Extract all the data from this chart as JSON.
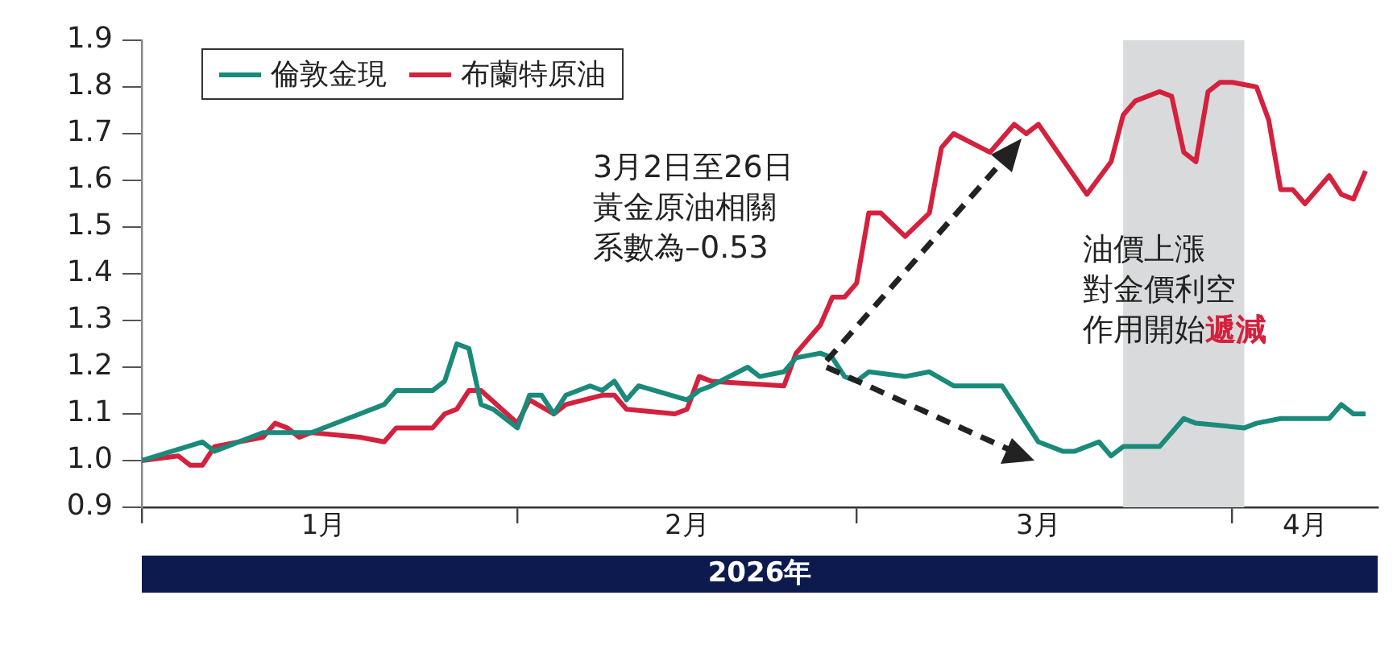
{
  "chart_data": {
    "type": "line",
    "xlabel": "2026年",
    "xlim": [
      "2026-01-01",
      "2026-04-13"
    ],
    "xticks": [
      {
        "value": "2026-01-01",
        "label": null
      },
      {
        "value": "2026-01-16",
        "label": "1月"
      },
      {
        "value": "2026-02-01",
        "label": null
      },
      {
        "value": "2026-02-15",
        "label": "2月"
      },
      {
        "value": "2026-03-01",
        "label": null
      },
      {
        "value": "2026-03-16",
        "label": "3月"
      },
      {
        "value": "2026-04-01",
        "label": null
      },
      {
        "value": "2026-04-07",
        "label": "4月"
      }
    ],
    "ylim": [
      0.9,
      1.9
    ],
    "yticks": [
      0.9,
      {
        "value": 1.0,
        "label": "1.0"
      },
      1.1,
      1.2,
      1.3,
      1.4,
      1.5,
      1.6,
      1.7,
      1.8,
      1.9
    ],
    "grid": false,
    "legend": "top left",
    "marker": "none",
    "line_style": "solid",
    "series": [
      {
        "name": "倫敦金現",
        "color": "#1a8a7a",
        "x": [
          "2026-01-01",
          "2026-01-06",
          "2026-01-07",
          "2026-01-11",
          "2026-01-15",
          "2026-01-19",
          "2026-01-21",
          "2026-01-22",
          "2026-01-25",
          "2026-01-26",
          "2026-01-27",
          "2026-01-28",
          "2026-01-29",
          "2026-01-30",
          "2026-02-01",
          "2026-02-02",
          "2026-02-03",
          "2026-02-04",
          "2026-02-05",
          "2026-02-07",
          "2026-02-08",
          "2026-02-09",
          "2026-02-10",
          "2026-02-11",
          "2026-02-15",
          "2026-02-16",
          "2026-02-17",
          "2026-02-20",
          "2026-02-21",
          "2026-02-23",
          "2026-02-24",
          "2026-02-26",
          "2026-02-27",
          "2026-02-28",
          "2026-03-01",
          "2026-03-02",
          "2026-03-05",
          "2026-03-07",
          "2026-03-09",
          "2026-03-13",
          "2026-03-16",
          "2026-03-18",
          "2026-03-19",
          "2026-03-21",
          "2026-03-22",
          "2026-03-23",
          "2026-03-26",
          "2026-03-27",
          "2026-03-28",
          "2026-03-29",
          "2026-04-02",
          "2026-04-03",
          "2026-04-05",
          "2026-04-09",
          "2026-04-10",
          "2026-04-11",
          "2026-04-12"
        ],
        "values": [
          1.0,
          1.04,
          1.02,
          1.06,
          1.06,
          1.1,
          1.12,
          1.15,
          1.15,
          1.17,
          1.25,
          1.24,
          1.12,
          1.11,
          1.07,
          1.14,
          1.14,
          1.1,
          1.14,
          1.16,
          1.15,
          1.17,
          1.13,
          1.16,
          1.13,
          1.15,
          1.16,
          1.2,
          1.18,
          1.19,
          1.22,
          1.23,
          1.22,
          1.18,
          1.17,
          1.19,
          1.18,
          1.19,
          1.16,
          1.16,
          1.04,
          1.02,
          1.02,
          1.04,
          1.01,
          1.03,
          1.03,
          1.06,
          1.09,
          1.08,
          1.07,
          1.08,
          1.09,
          1.09,
          1.12,
          1.1,
          1.1
        ]
      },
      {
        "name": "布蘭特原油",
        "color": "#d4213d",
        "x": [
          "2026-01-01",
          "2026-01-04",
          "2026-01-05",
          "2026-01-06",
          "2026-01-07",
          "2026-01-11",
          "2026-01-12",
          "2026-01-13",
          "2026-01-14",
          "2026-01-15",
          "2026-01-19",
          "2026-01-21",
          "2026-01-22",
          "2026-01-25",
          "2026-01-26",
          "2026-01-27",
          "2026-01-28",
          "2026-01-29",
          "2026-02-01",
          "2026-02-02",
          "2026-02-04",
          "2026-02-05",
          "2026-02-08",
          "2026-02-09",
          "2026-02-10",
          "2026-02-14",
          "2026-02-15",
          "2026-02-16",
          "2026-02-17",
          "2026-02-23",
          "2026-02-24",
          "2026-02-26",
          "2026-02-27",
          "2026-02-28",
          "2026-03-01",
          "2026-03-02",
          "2026-03-03",
          "2026-03-05",
          "2026-03-07",
          "2026-03-08",
          "2026-03-09",
          "2026-03-12",
          "2026-03-14",
          "2026-03-15",
          "2026-03-16",
          "2026-03-20",
          "2026-03-22",
          "2026-03-23",
          "2026-03-24",
          "2026-03-26",
          "2026-03-27",
          "2026-03-28",
          "2026-03-29",
          "2026-03-30",
          "2026-03-31",
          "2026-04-01",
          "2026-04-03",
          "2026-04-04",
          "2026-04-05",
          "2026-04-06",
          "2026-04-07",
          "2026-04-09",
          "2026-04-10",
          "2026-04-11",
          "2026-04-12"
        ],
        "values": [
          1.0,
          1.01,
          0.99,
          0.99,
          1.03,
          1.05,
          1.08,
          1.07,
          1.05,
          1.06,
          1.05,
          1.04,
          1.07,
          1.07,
          1.1,
          1.11,
          1.15,
          1.15,
          1.08,
          1.13,
          1.1,
          1.12,
          1.14,
          1.14,
          1.11,
          1.1,
          1.11,
          1.18,
          1.17,
          1.16,
          1.23,
          1.29,
          1.35,
          1.35,
          1.38,
          1.53,
          1.53,
          1.48,
          1.53,
          1.67,
          1.7,
          1.66,
          1.72,
          1.7,
          1.72,
          1.57,
          1.64,
          1.74,
          1.77,
          1.79,
          1.78,
          1.66,
          1.64,
          1.79,
          1.81,
          1.81,
          1.8,
          1.73,
          1.58,
          1.58,
          1.55,
          1.61,
          1.57,
          1.56,
          1.62
        ]
      }
    ],
    "bands": [
      {
        "axis": "x",
        "from": "2026-03-23",
        "to": "2026-04-02",
        "color": "#d9dadb"
      }
    ],
    "annotations": [
      "3月2日至26日黃金原油相關系數為–0.53",
      "油價上漲對金價利空作用開始遞減"
    ]
  }
}
